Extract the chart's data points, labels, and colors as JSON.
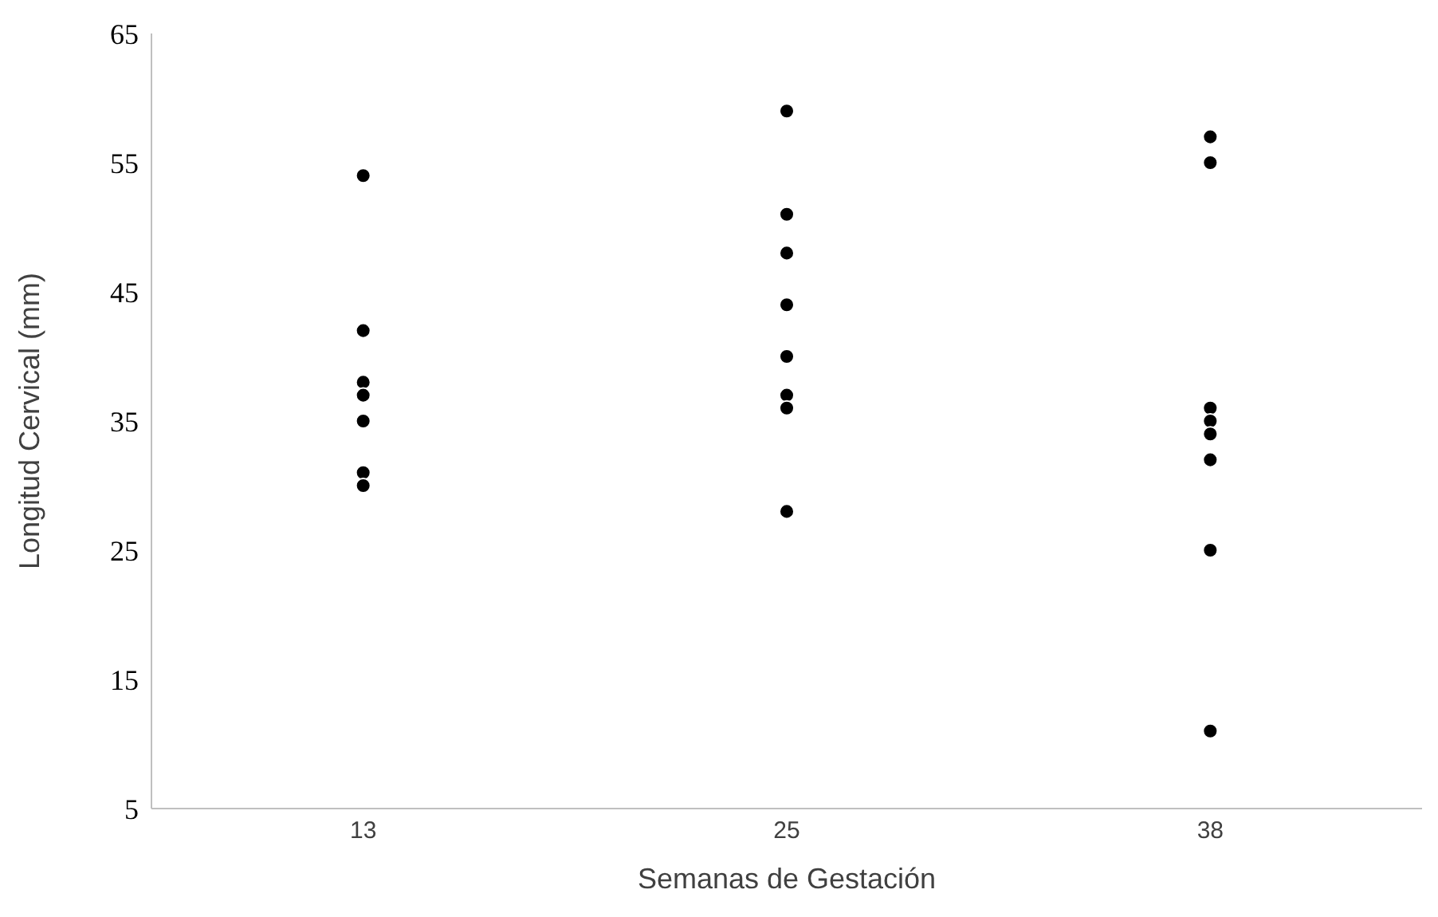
{
  "chart_data": {
    "type": "scatter",
    "xlabel": "Semanas de Gestación",
    "ylabel": "Longitud Cervical (mm)",
    "categories": [
      "13",
      "25",
      "38"
    ],
    "ylim": [
      5,
      65
    ],
    "yticks": [
      5,
      15,
      25,
      35,
      45,
      55,
      65
    ],
    "marker": "circle",
    "series": [
      {
        "color": "#000000",
        "x": [
          "13",
          "13",
          "13",
          "13",
          "13",
          "13",
          "13",
          "25",
          "25",
          "25",
          "25",
          "25",
          "25",
          "25",
          "25",
          "38",
          "38",
          "38",
          "38",
          "38",
          "38",
          "38",
          "38"
        ],
        "values": [
          54,
          42,
          38,
          37,
          35,
          31,
          30,
          59,
          51,
          48,
          44,
          40,
          37,
          36,
          28,
          57,
          55,
          36,
          35,
          34,
          32,
          25,
          11
        ]
      }
    ]
  }
}
